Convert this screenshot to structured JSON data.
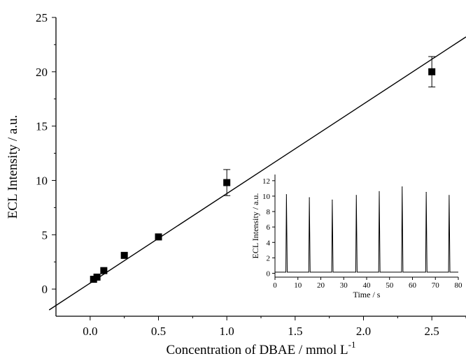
{
  "chart_data": [
    {
      "type": "scatter",
      "title": "",
      "xlabel": "Concentration of DBAE / mmol L",
      "xlabel_superscript": "-1",
      "ylabel": "ECL Intensity / a.u.",
      "xlim": [
        -0.25,
        2.75
      ],
      "ylim": [
        -2.5,
        25
      ],
      "xticks": [
        0.0,
        0.5,
        1.0,
        1.5,
        2.0,
        2.5
      ],
      "xtick_labels": [
        "0.0",
        "0.5",
        "1.0",
        "1.5",
        "2.0",
        "2.5"
      ],
      "yticks": [
        0,
        5,
        10,
        15,
        20,
        25
      ],
      "ytick_labels": [
        "0",
        "5",
        "10",
        "15",
        "20",
        "25"
      ],
      "series": [
        {
          "marker": "square",
          "x": [
            0.025,
            0.05,
            0.1,
            0.25,
            0.5,
            1.0,
            2.5
          ],
          "y": [
            0.9,
            1.1,
            1.7,
            3.1,
            4.8,
            9.8,
            20.0
          ],
          "error": [
            null,
            null,
            null,
            null,
            null,
            1.2,
            1.4
          ]
        }
      ],
      "fit_line": {
        "slope": 8.24,
        "intercept": 0.55
      },
      "grid": false
    },
    {
      "type": "line",
      "title": "",
      "xlabel": "Time / s",
      "ylabel": "ECL Intensity / a.u.",
      "xlim": [
        0,
        80
      ],
      "ylim": [
        -0.5,
        12.8
      ],
      "xticks": [
        0,
        10,
        20,
        30,
        40,
        50,
        60,
        70,
        80
      ],
      "xtick_labels": [
        "0",
        "10",
        "20",
        "30",
        "40",
        "50",
        "60",
        "70",
        "80"
      ],
      "yticks": [
        0,
        2,
        4,
        6,
        8,
        10,
        12
      ],
      "ytick_labels": [
        "0",
        "2",
        "4",
        "6",
        "8",
        "10",
        "12"
      ],
      "peaks": {
        "time": [
          5,
          15,
          25,
          35.5,
          45.5,
          55.5,
          66,
          76
        ],
        "height": [
          10.2,
          9.8,
          9.5,
          10.1,
          10.6,
          11.2,
          10.5,
          10.1
        ]
      }
    }
  ]
}
